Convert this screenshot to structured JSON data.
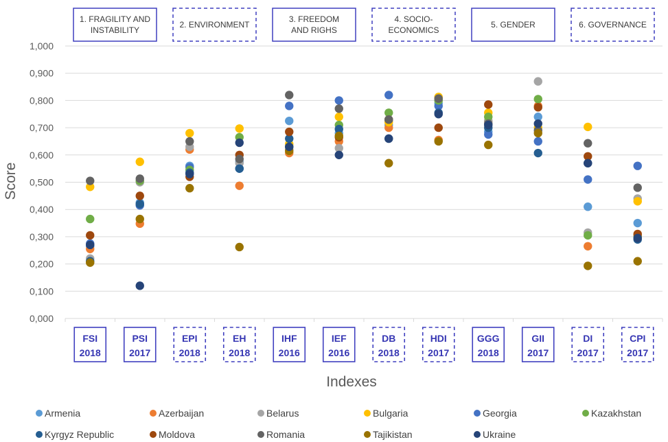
{
  "chart_data": {
    "type": "scatter",
    "ylabel": "Score",
    "xlabel": "Indexes",
    "ylim": [
      0,
      1
    ],
    "ytick_labels": [
      "0,000",
      "0,100",
      "0,200",
      "0,300",
      "0,400",
      "0,500",
      "0,600",
      "0,700",
      "0,800",
      "0,900",
      "1,000"
    ],
    "grid": true,
    "groups": [
      {
        "label": "1. FRAGILITY AND INSTABILITY",
        "lines": [
          "1. FRAGILITY AND",
          "INSTABILITY"
        ],
        "style": "solid",
        "span": [
          0,
          1
        ]
      },
      {
        "label": "2. ENVIRONMENT",
        "lines": [
          "2. ENVIRONMENT"
        ],
        "style": "dashed",
        "span": [
          2,
          3
        ]
      },
      {
        "label": "3. FREEDOM AND RIGHS",
        "lines": [
          "3. FREEDOM",
          "AND RIGHS"
        ],
        "style": "solid",
        "span": [
          4,
          5
        ]
      },
      {
        "label": "4. SOCIO-ECONOMICS",
        "lines": [
          "4. SOCIO-",
          "ECONOMICS"
        ],
        "style": "dashed",
        "span": [
          6,
          7
        ]
      },
      {
        "label": "5. GENDER",
        "lines": [
          "5. GENDER"
        ],
        "style": "solid",
        "span": [
          8,
          9
        ]
      },
      {
        "label": "6. GOVERNANCE",
        "lines": [
          "6. GOVERNANCE"
        ],
        "style": "dashed",
        "span": [
          10,
          11
        ]
      }
    ],
    "categories": [
      {
        "name": "FSI",
        "year": "2018",
        "style": "solid"
      },
      {
        "name": "PSI",
        "year": "2017",
        "style": "solid"
      },
      {
        "name": "EPI",
        "year": "2018",
        "style": "dashed"
      },
      {
        "name": "EH",
        "year": "2018",
        "style": "dashed"
      },
      {
        "name": "IHF",
        "year": "2016",
        "style": "solid"
      },
      {
        "name": "IEF",
        "year": "2016",
        "style": "solid"
      },
      {
        "name": "DB",
        "year": "2018",
        "style": "dashed"
      },
      {
        "name": "HDI",
        "year": "2017",
        "style": "dashed"
      },
      {
        "name": "GGG",
        "year": "2018",
        "style": "solid"
      },
      {
        "name": "GII",
        "year": "2017",
        "style": "solid"
      },
      {
        "name": "DI",
        "year": "2017",
        "style": "dashed"
      },
      {
        "name": "CPI",
        "year": "2017",
        "style": "dashed"
      }
    ],
    "legend_position": "bottom",
    "series": [
      {
        "name": "Armenia",
        "color": "#5b9bd5",
        "values": [
          0.265,
          0.425,
          0.56,
          0.575,
          0.725,
          0.68,
          0.71,
          0.79,
          0.685,
          0.74,
          0.41,
          0.35
        ]
      },
      {
        "name": "Azerbaijan",
        "color": "#ed7d31",
        "values": [
          0.255,
          0.348,
          0.62,
          0.487,
          0.607,
          0.65,
          0.7,
          0.655,
          0.725,
          0.78,
          0.265,
          0.305
        ]
      },
      {
        "name": "Belarus",
        "color": "#a5a5a5",
        "values": [
          0.22,
          0.5,
          0.63,
          0.57,
          0.62,
          0.625,
          0.725,
          0.8,
          0.725,
          0.87,
          0.315,
          0.44
        ]
      },
      {
        "name": "Bulgaria",
        "color": "#ffc000",
        "values": [
          0.483,
          0.575,
          0.68,
          0.697,
          0.64,
          0.74,
          0.72,
          0.813,
          0.755,
          0.7,
          0.703,
          0.43
        ]
      },
      {
        "name": "Georgia",
        "color": "#4472c4",
        "values": [
          0.275,
          0.415,
          0.555,
          0.55,
          0.78,
          0.8,
          0.82,
          0.78,
          0.675,
          0.65,
          0.51,
          0.56
        ]
      },
      {
        "name": "Kazakhstan",
        "color": "#70ad47",
        "values": [
          0.365,
          0.505,
          0.545,
          0.665,
          0.63,
          0.71,
          0.755,
          0.8,
          0.74,
          0.805,
          0.305,
          0.3
        ]
      },
      {
        "name": "Kyrgyz Republic",
        "color": "#255e91",
        "values": [
          0.21,
          0.42,
          0.535,
          0.55,
          0.66,
          0.695,
          0.66,
          0.755,
          0.7,
          0.607,
          0.57,
          0.29
        ]
      },
      {
        "name": "Moldova",
        "color": "#9e480e",
        "values": [
          0.305,
          0.45,
          0.52,
          0.6,
          0.685,
          0.665,
          0.73,
          0.7,
          0.785,
          0.775,
          0.595,
          0.31
        ]
      },
      {
        "name": "Romania",
        "color": "#636363",
        "values": [
          0.505,
          0.513,
          0.65,
          0.585,
          0.82,
          0.77,
          0.73,
          0.807,
          0.715,
          0.69,
          0.643,
          0.48
        ]
      },
      {
        "name": "Tajikistan",
        "color": "#997300",
        "values": [
          0.205,
          0.365,
          0.478,
          0.262,
          0.615,
          0.67,
          0.57,
          0.65,
          0.637,
          0.68,
          0.193,
          0.21
        ]
      },
      {
        "name": "Ukraine",
        "color": "#264478",
        "values": [
          0.27,
          0.12,
          0.53,
          0.645,
          0.63,
          0.6,
          0.66,
          0.75,
          0.71,
          0.715,
          0.57,
          0.295
        ]
      }
    ]
  }
}
